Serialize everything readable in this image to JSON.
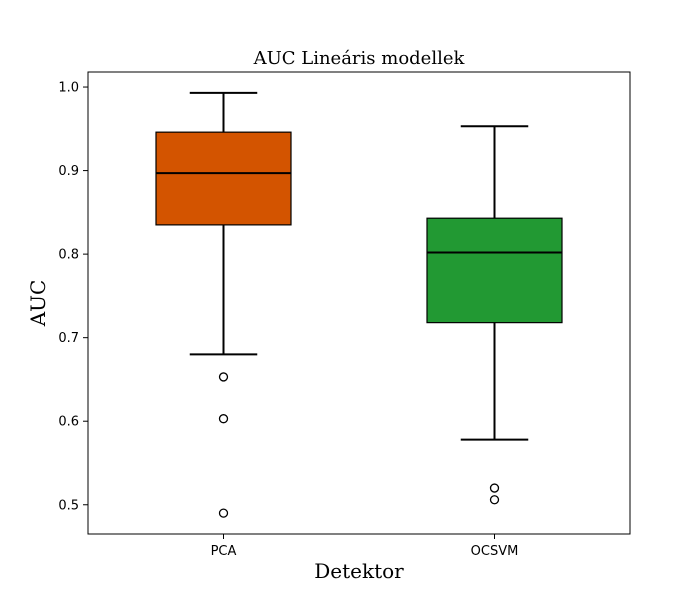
{
  "chart_data": {
    "type": "box",
    "title": "AUC Lineáris modellek",
    "xlabel": "Detektor",
    "ylabel": "AUC",
    "ylim": [
      0.465,
      1.018
    ],
    "yticks": [
      0.5,
      0.6,
      0.7,
      0.8,
      0.9,
      1.0
    ],
    "ytick_labels": [
      "0.5",
      "0.6",
      "0.7",
      "0.8",
      "0.9",
      "1.0"
    ],
    "grid": false,
    "series": [
      {
        "category": "PCA",
        "color": "#d35400",
        "whisker_low": 0.68,
        "q1": 0.835,
        "median": 0.897,
        "q3": 0.946,
        "whisker_high": 0.993,
        "outliers": [
          0.653,
          0.603,
          0.49
        ]
      },
      {
        "category": "OCSVM",
        "color": "#229933",
        "whisker_low": 0.578,
        "q1": 0.718,
        "median": 0.802,
        "q3": 0.843,
        "whisker_high": 0.953,
        "outliers": [
          0.52,
          0.506
        ]
      }
    ]
  }
}
